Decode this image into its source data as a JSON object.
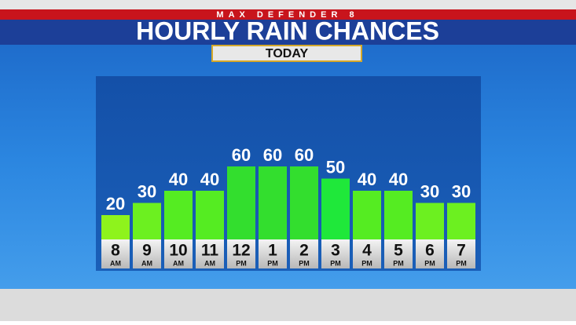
{
  "chart_data": {
    "type": "bar",
    "brand": "MAX DEFENDER 8",
    "title": "HOURLY RAIN CHANCES",
    "subtitle": "TODAY",
    "categories": [
      "8",
      "9",
      "10",
      "11",
      "12",
      "1",
      "2",
      "3",
      "4",
      "5",
      "6",
      "7"
    ],
    "periods": [
      "AM",
      "AM",
      "AM",
      "AM",
      "PM",
      "PM",
      "PM",
      "PM",
      "PM",
      "PM",
      "PM",
      "PM"
    ],
    "values": [
      20,
      30,
      40,
      40,
      60,
      60,
      60,
      50,
      40,
      40,
      30,
      30
    ],
    "colors": [
      "#8ef31c",
      "#6cf020",
      "#55ec22",
      "#55ec22",
      "#33de2e",
      "#33de2e",
      "#33de2e",
      "#1fe83a",
      "#55ec22",
      "#55ec22",
      "#6cf020",
      "#6cf020"
    ]
  }
}
